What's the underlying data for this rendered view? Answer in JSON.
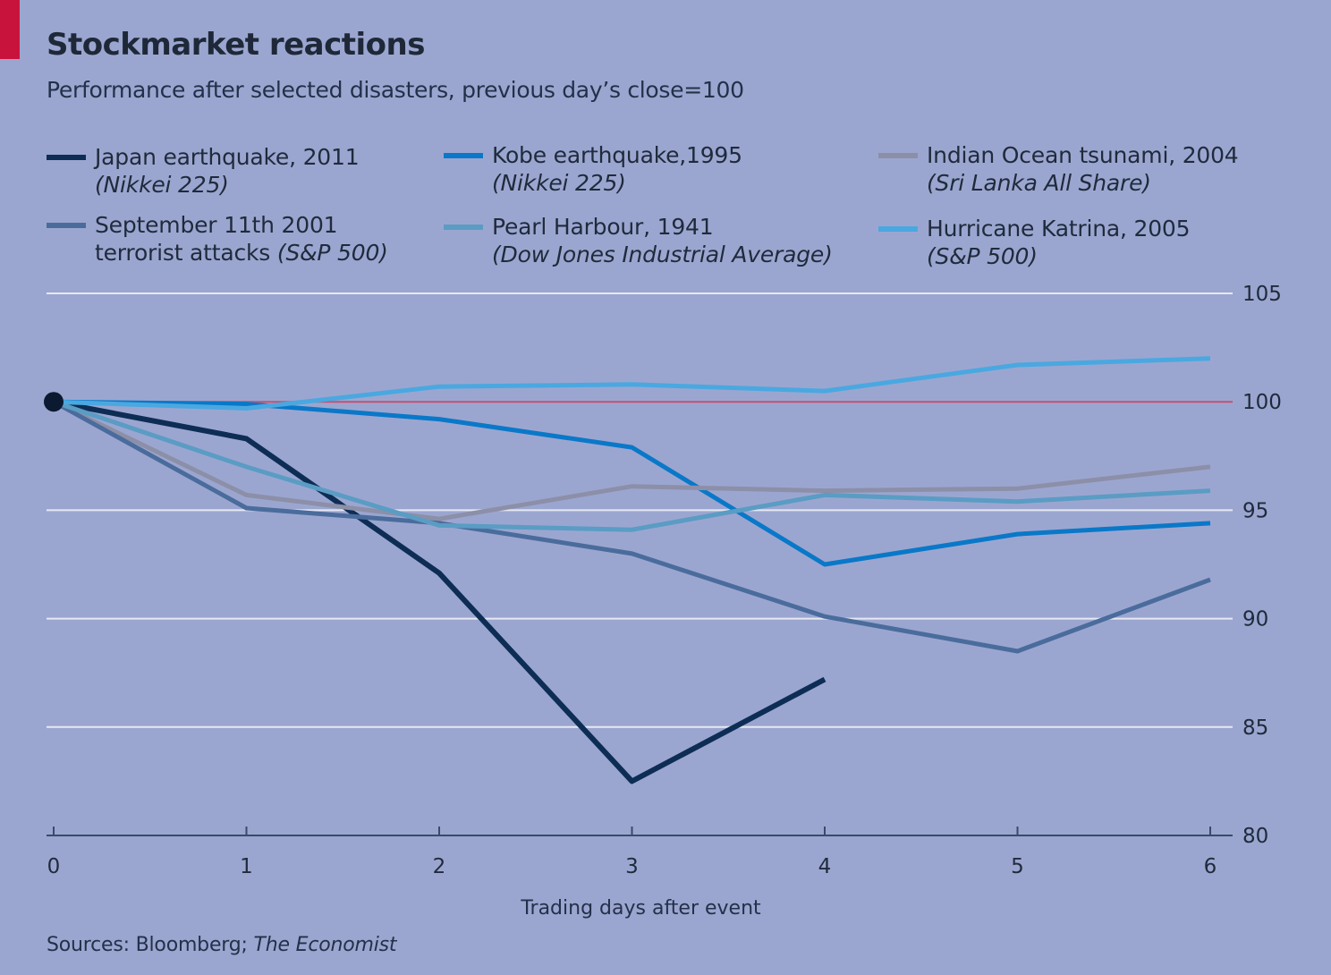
{
  "header": {
    "title": "Stockmarket reactions",
    "subtitle": "Performance after selected disasters, previous day’s close=100"
  },
  "legend": [
    {
      "line1": "Japan earthquake, 2011",
      "line2_plain": "",
      "line2_italic": "(Nikkei 225)",
      "color": "#0d2d55"
    },
    {
      "line1": "Kobe earthquake,1995",
      "line2_plain": "",
      "line2_italic": "(Nikkei 225)",
      "color": "#0a78c8"
    },
    {
      "line1": "Indian Ocean tsunami, 2004",
      "line2_plain": "",
      "line2_italic": "(Sri Lanka All Share)",
      "color": "#8c8fa8"
    },
    {
      "line1": "September 11th 2001",
      "line2_plain": "terrorist attacks ",
      "line2_italic": "(S&P 500)",
      "color": "#4a6c9c"
    },
    {
      "line1": "Pearl Harbour, 1941",
      "line2_plain": "",
      "line2_italic": "(Dow Jones Industrial Average)",
      "color": "#5a9cc4"
    },
    {
      "line1": "Hurricane Katrina, 2005",
      "line2_plain": "",
      "line2_italic": "(S&P 500)",
      "color": "#4aa8e0"
    }
  ],
  "source": {
    "prefix": "Sources: Bloomberg; ",
    "italic": "The Economist"
  },
  "chart_data": {
    "type": "line",
    "title": "Stockmarket reactions",
    "subtitle": "Performance after selected disasters, previous day’s close=100",
    "xlabel": "Trading days after event",
    "ylabel": "",
    "x": [
      0,
      1,
      2,
      3,
      4,
      5,
      6
    ],
    "xlim": [
      0,
      6
    ],
    "ylim": [
      80,
      105
    ],
    "yticks": [
      80,
      85,
      90,
      95,
      100,
      105
    ],
    "reference_line": {
      "y": 100,
      "color": "#c85070"
    },
    "grid": "horizontal",
    "legend_position": "top",
    "series": [
      {
        "name": "Japan earthquake, 2011 (Nikkei 225)",
        "color": "#0d2d55",
        "x": [
          0,
          1,
          2,
          3,
          4
        ],
        "values": [
          100,
          98.3,
          92.1,
          82.5,
          87.2
        ]
      },
      {
        "name": "Kobe earthquake,1995 (Nikkei 225)",
        "color": "#0a78c8",
        "x": [
          0,
          1,
          2,
          3,
          4,
          5,
          6
        ],
        "values": [
          100,
          99.9,
          99.2,
          97.9,
          92.5,
          93.9,
          94.4
        ]
      },
      {
        "name": "Indian Ocean tsunami, 2004 (Sri Lanka All Share)",
        "color": "#8c8fa8",
        "x": [
          0,
          1,
          2,
          3,
          4,
          5,
          6
        ],
        "values": [
          100,
          95.7,
          94.6,
          96.1,
          95.9,
          96.0,
          97.0
        ]
      },
      {
        "name": "September 11th 2001 terrorist attacks (S&P 500)",
        "color": "#4a6c9c",
        "x": [
          0,
          1,
          2,
          3,
          4,
          5,
          6
        ],
        "values": [
          100,
          95.1,
          94.4,
          93.0,
          90.1,
          88.5,
          91.8
        ]
      },
      {
        "name": "Pearl Harbour, 1941 (Dow Jones Industrial Average)",
        "color": "#5a9cc4",
        "x": [
          0,
          1,
          2,
          3,
          4,
          5,
          6
        ],
        "values": [
          100,
          97.0,
          94.3,
          94.1,
          95.7,
          95.4,
          95.9
        ]
      },
      {
        "name": "Hurricane Katrina, 2005 (S&P 500)",
        "color": "#4aa8e0",
        "x": [
          0,
          1,
          2,
          3,
          4,
          5,
          6
        ],
        "values": [
          100,
          99.7,
          100.7,
          100.8,
          100.5,
          101.7,
          102.0
        ]
      }
    ]
  }
}
